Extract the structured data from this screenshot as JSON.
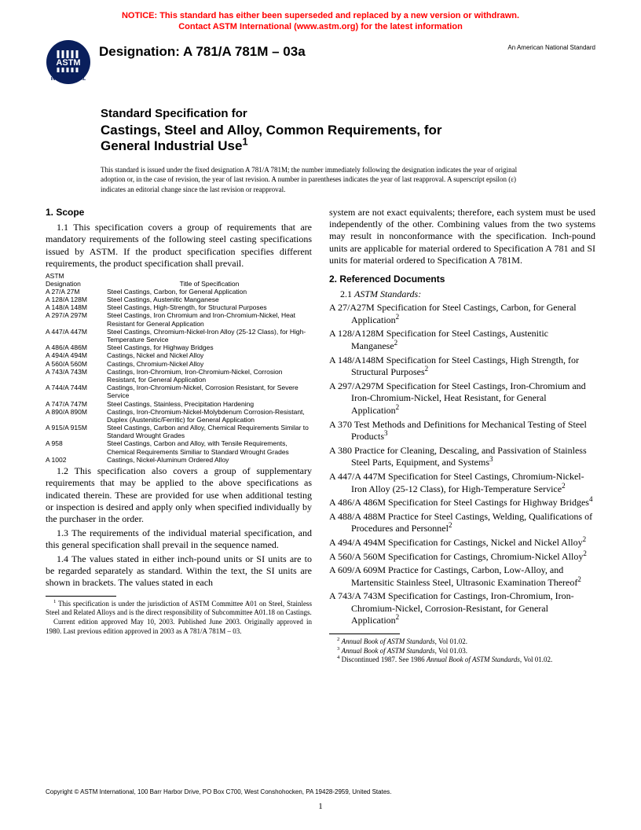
{
  "notice": {
    "line1": "NOTICE: This standard has either been superseded and replaced by a new version or withdrawn.",
    "line2": "Contact ASTM International (www.astm.org) for the latest information",
    "color": "#ff0000"
  },
  "header": {
    "designation_label": "Designation: A 781/A 781M – 03a",
    "ans_label": "An American National Standard",
    "logo_text_top": "ASTM",
    "logo_text_bottom": "INTERNATIONAL"
  },
  "title": {
    "line1": "Standard Specification for",
    "line2": "Castings, Steel and Alloy, Common Requirements, for",
    "line3": "General Industrial Use",
    "sup": "1"
  },
  "issuance": "This standard is issued under the fixed designation A 781/A 781M; the number immediately following the designation indicates the year of original adoption or, in the case of revision, the year of last revision. A number in parentheses indicates the year of last reapproval. A superscript epsilon (ε) indicates an editorial change since the last revision or reapproval.",
  "left": {
    "scope_head": "1.  Scope",
    "p11": "1.1 This specification covers a group of requirements that are mandatory requirements of the following steel casting specifications issued by ASTM. If the product specification specifies different requirements, the product specification shall prevail.",
    "table_head_astm": "ASTM",
    "table_head_desig": "Designation",
    "table_head_title": "Title of Specification",
    "specs": [
      {
        "d": "A 27/A 27M",
        "t": "Steel Castings, Carbon, for General Application"
      },
      {
        "d": "A 128/A 128M",
        "t": "Steel Castings, Austenitic Manganese"
      },
      {
        "d": "A 148/A 148M",
        "t": "Steel Castings, High-Strength, for Structural Purposes"
      },
      {
        "d": "A 297/A 297M",
        "t": "Steel Castings, Iron Chromium and Iron-Chromium-Nickel, Heat Resistant for General Application"
      },
      {
        "d": "A 447/A 447M",
        "t": "Steel Castings, Chromium-Nickel-Iron Alloy (25-12 Class), for High-Temperature Service"
      },
      {
        "d": "A 486/A 486M",
        "t": "Steel Castings, for Highway Bridges"
      },
      {
        "d": "A 494/A 494M",
        "t": "Castings, Nickel and Nickel Alloy"
      },
      {
        "d": "A 560/A 560M",
        "t": "Castings, Chromium-Nickel Alloy"
      },
      {
        "d": "A 743/A 743M",
        "t": "Castings, Iron-Chromium, Iron-Chromium-Nickel, Corrosion Resistant, for General Application"
      },
      {
        "d": "A 744/A 744M",
        "t": "Castings, Iron-Chromium-Nickel, Corrosion Resistant, for Severe Service"
      },
      {
        "d": "A 747/A 747M",
        "t": "Steel Castings, Stainless, Precipitation Hardening"
      },
      {
        "d": "A 890/A 890M",
        "t": "Castings, Iron-Chromium-Nickel-Molybdenum Corrosion-Resistant, Duplex (Austenitic/Ferritic) for General Application"
      },
      {
        "d": "A 915/A 915M",
        "t": "Steel Castings, Carbon and Alloy, Chemical Requirements Similar to Standard Wrought Grades"
      },
      {
        "d": "A 958",
        "t": "Steel Castings, Carbon and Alloy, with Tensile Requirements, Chemical Requirements Similiar to Standard Wrought Grades"
      },
      {
        "d": "A 1002",
        "t": "Castings, Nickel-Aluminum Ordered Alloy"
      }
    ],
    "p12": "1.2 This specification also covers a group of supplementary requirements that may be applied to the above specifications as indicated therein. These are provided for use when additional testing or inspection is desired and apply only when specified individually by the purchaser in the order.",
    "p13": "1.3 The requirements of the individual material specification, and this general specification shall prevail in the sequence named.",
    "p14": "1.4 The values stated in either inch-pound units or SI units are to be regarded separately as standard. Within the text, the SI units are shown in brackets. The values stated in each",
    "fn1a": " This specification is under the jurisdiction of ASTM Committee A01 on Steel, Stainless Steel and Related Alloys and is the direct responsibility of Subcommittee A01.18 on Castings.",
    "fn1b": "Current edition approved May 10, 2003. Published June 2003. Originally approved in 1980. Last previous edition approved in 2003 as A 781/A 781M – 03."
  },
  "right": {
    "p14_cont": "system are not exact equivalents; therefore, each system must be used independently of the other. Combining values from the two systems may result in nonconformance with the specification. Inch-pound units are applicable for material ordered to Specification A 781 and SI units for material ordered to Specification A 781M.",
    "ref_head": "2.  Referenced Documents",
    "p21": "2.1",
    "p21_it": "ASTM Standards:",
    "refs": [
      {
        "d": "A 27/A27M",
        "t": "Specification for Steel Castings, Carbon, for General Application",
        "s": "2"
      },
      {
        "d": "A 128/A128M",
        "t": "Specification for Steel Castings, Austenitic Manganese",
        "s": "2"
      },
      {
        "d": "A 148/A148M",
        "t": "Specification for Steel Castings, High Strength, for Structural Purposes",
        "s": "2"
      },
      {
        "d": "A 297/A297M",
        "t": "Specification for Steel Castings, Iron-Chromium and Iron-Chromium-Nickel, Heat Resistant, for General Application",
        "s": "2"
      },
      {
        "d": "A 370",
        "t": "Test Methods and Definitions for Mechanical Testing of Steel Products",
        "s": "3"
      },
      {
        "d": "A 380",
        "t": "Practice for Cleaning, Descaling, and Passivation of Stainless Steel Parts, Equipment, and Systems",
        "s": "3"
      },
      {
        "d": "A 447/A 447M",
        "t": "Specification for Steel Castings, Chromium-Nickel-Iron Alloy (25-12 Class), for High-Temperature Service",
        "s": "2"
      },
      {
        "d": "A 486/A 486M",
        "t": "Specification for Steel Castings for Highway Bridges",
        "s": "4"
      },
      {
        "d": "A 488/A 488M",
        "t": "Practice for Steel Castings, Welding, Qualifications of Procedures and Personnel",
        "s": "2"
      },
      {
        "d": "A 494/A 494M",
        "t": "Specification for Castings, Nickel and Nickel Alloy",
        "s": "2"
      },
      {
        "d": "A 560/A 560M",
        "t": "Specification for Castings, Chromium-Nickel Alloy",
        "s": "2"
      },
      {
        "d": "A 609/A 609M",
        "t": "Practice for Castings, Carbon, Low-Alloy, and Martensitic Stainless Steel, Ultrasonic Examination Thereof",
        "s": "2"
      },
      {
        "d": "A 743/A 743M",
        "t": "Specification for Castings, Iron-Chromium, Iron-Chromium-Nickel, Corrosion-Resistant, for General Application",
        "s": "2"
      }
    ],
    "fn2": "Annual Book of ASTM Standards",
    "fn2v": ", Vol 01.02.",
    "fn3": "Annual Book of ASTM Standards",
    "fn3v": ", Vol 01.03.",
    "fn4a": " Discontinued 1987. See 1986 ",
    "fn4b": "Annual Book of ASTM Standards",
    "fn4c": ", Vol 01.02."
  },
  "copyright": "Copyright © ASTM International, 100 Barr Harbor Drive, PO Box C700, West Conshohocken, PA 19428-2959, United States.",
  "pagenum": "1"
}
